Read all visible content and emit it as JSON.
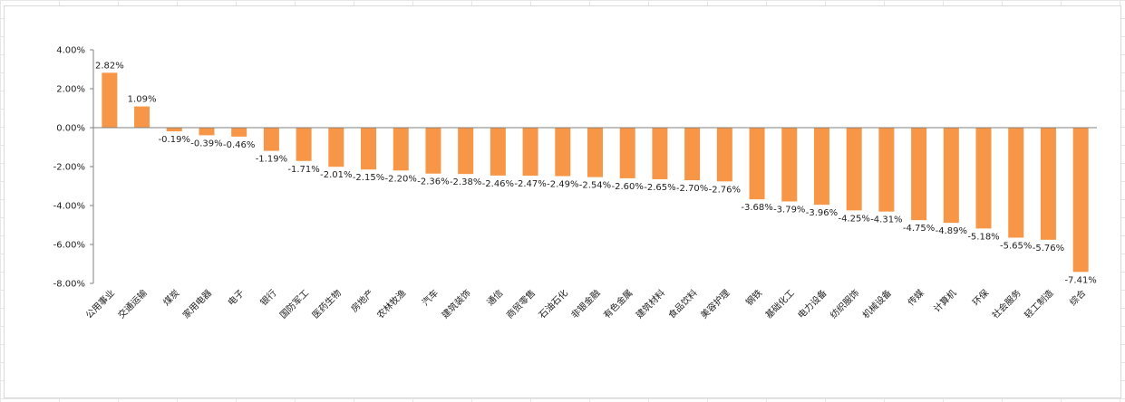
{
  "chart_data": {
    "type": "bar",
    "title": "",
    "xlabel": "",
    "ylabel": "",
    "ylim": [
      -8,
      4
    ],
    "yticks": [
      4,
      2,
      0,
      -2,
      -4,
      -6,
      -8
    ],
    "ytick_labels": [
      "4.00%",
      "2.00%",
      "0.00%",
      "-2.00%",
      "-4.00%",
      "-6.00%",
      "-8.00%"
    ],
    "grid": false,
    "legend": "none",
    "bar_color": "#f79646",
    "categories": [
      "公用事业",
      "交通运输",
      "煤炭",
      "家用电器",
      "电子",
      "银行",
      "国防军工",
      "医药生物",
      "房地产",
      "农林牧渔",
      "汽车",
      "建筑装饰",
      "通信",
      "商贸零售",
      "石油石化",
      "非银金融",
      "有色金属",
      "建筑材料",
      "食品饮料",
      "美容护理",
      "钢铁",
      "基础化工",
      "电力设备",
      "纺织服饰",
      "机械设备",
      "传媒",
      "计算机",
      "环保",
      "社会服务",
      "轻工制造",
      "综合"
    ],
    "values": [
      2.82,
      1.09,
      -0.19,
      -0.39,
      -0.46,
      -1.19,
      -1.71,
      -2.01,
      -2.15,
      -2.2,
      -2.36,
      -2.38,
      -2.46,
      -2.47,
      -2.49,
      -2.54,
      -2.6,
      -2.65,
      -2.7,
      -2.76,
      -3.68,
      -3.79,
      -3.96,
      -4.25,
      -4.31,
      -4.75,
      -4.89,
      -5.18,
      -5.65,
      -5.76,
      -7.41
    ],
    "value_labels": [
      "2.82%",
      "1.09%",
      "-0.19%",
      "-0.39%",
      "-0.46%",
      "-1.19%",
      "-1.71%",
      "-2.01%",
      "-2.15%",
      "-2.20%",
      "-2.36%",
      "-2.38%",
      "-2.46%",
      "-2.47%",
      "-2.49%",
      "-2.54%",
      "-2.60%",
      "-2.65%",
      "-2.70%",
      "-2.76%",
      "-3.68%",
      "-3.79%",
      "-3.96%",
      "-4.25%",
      "-4.31%",
      "-4.75%",
      "-4.89%",
      "-5.18%",
      "-5.65%",
      "-5.76%",
      "-7.41%"
    ]
  }
}
